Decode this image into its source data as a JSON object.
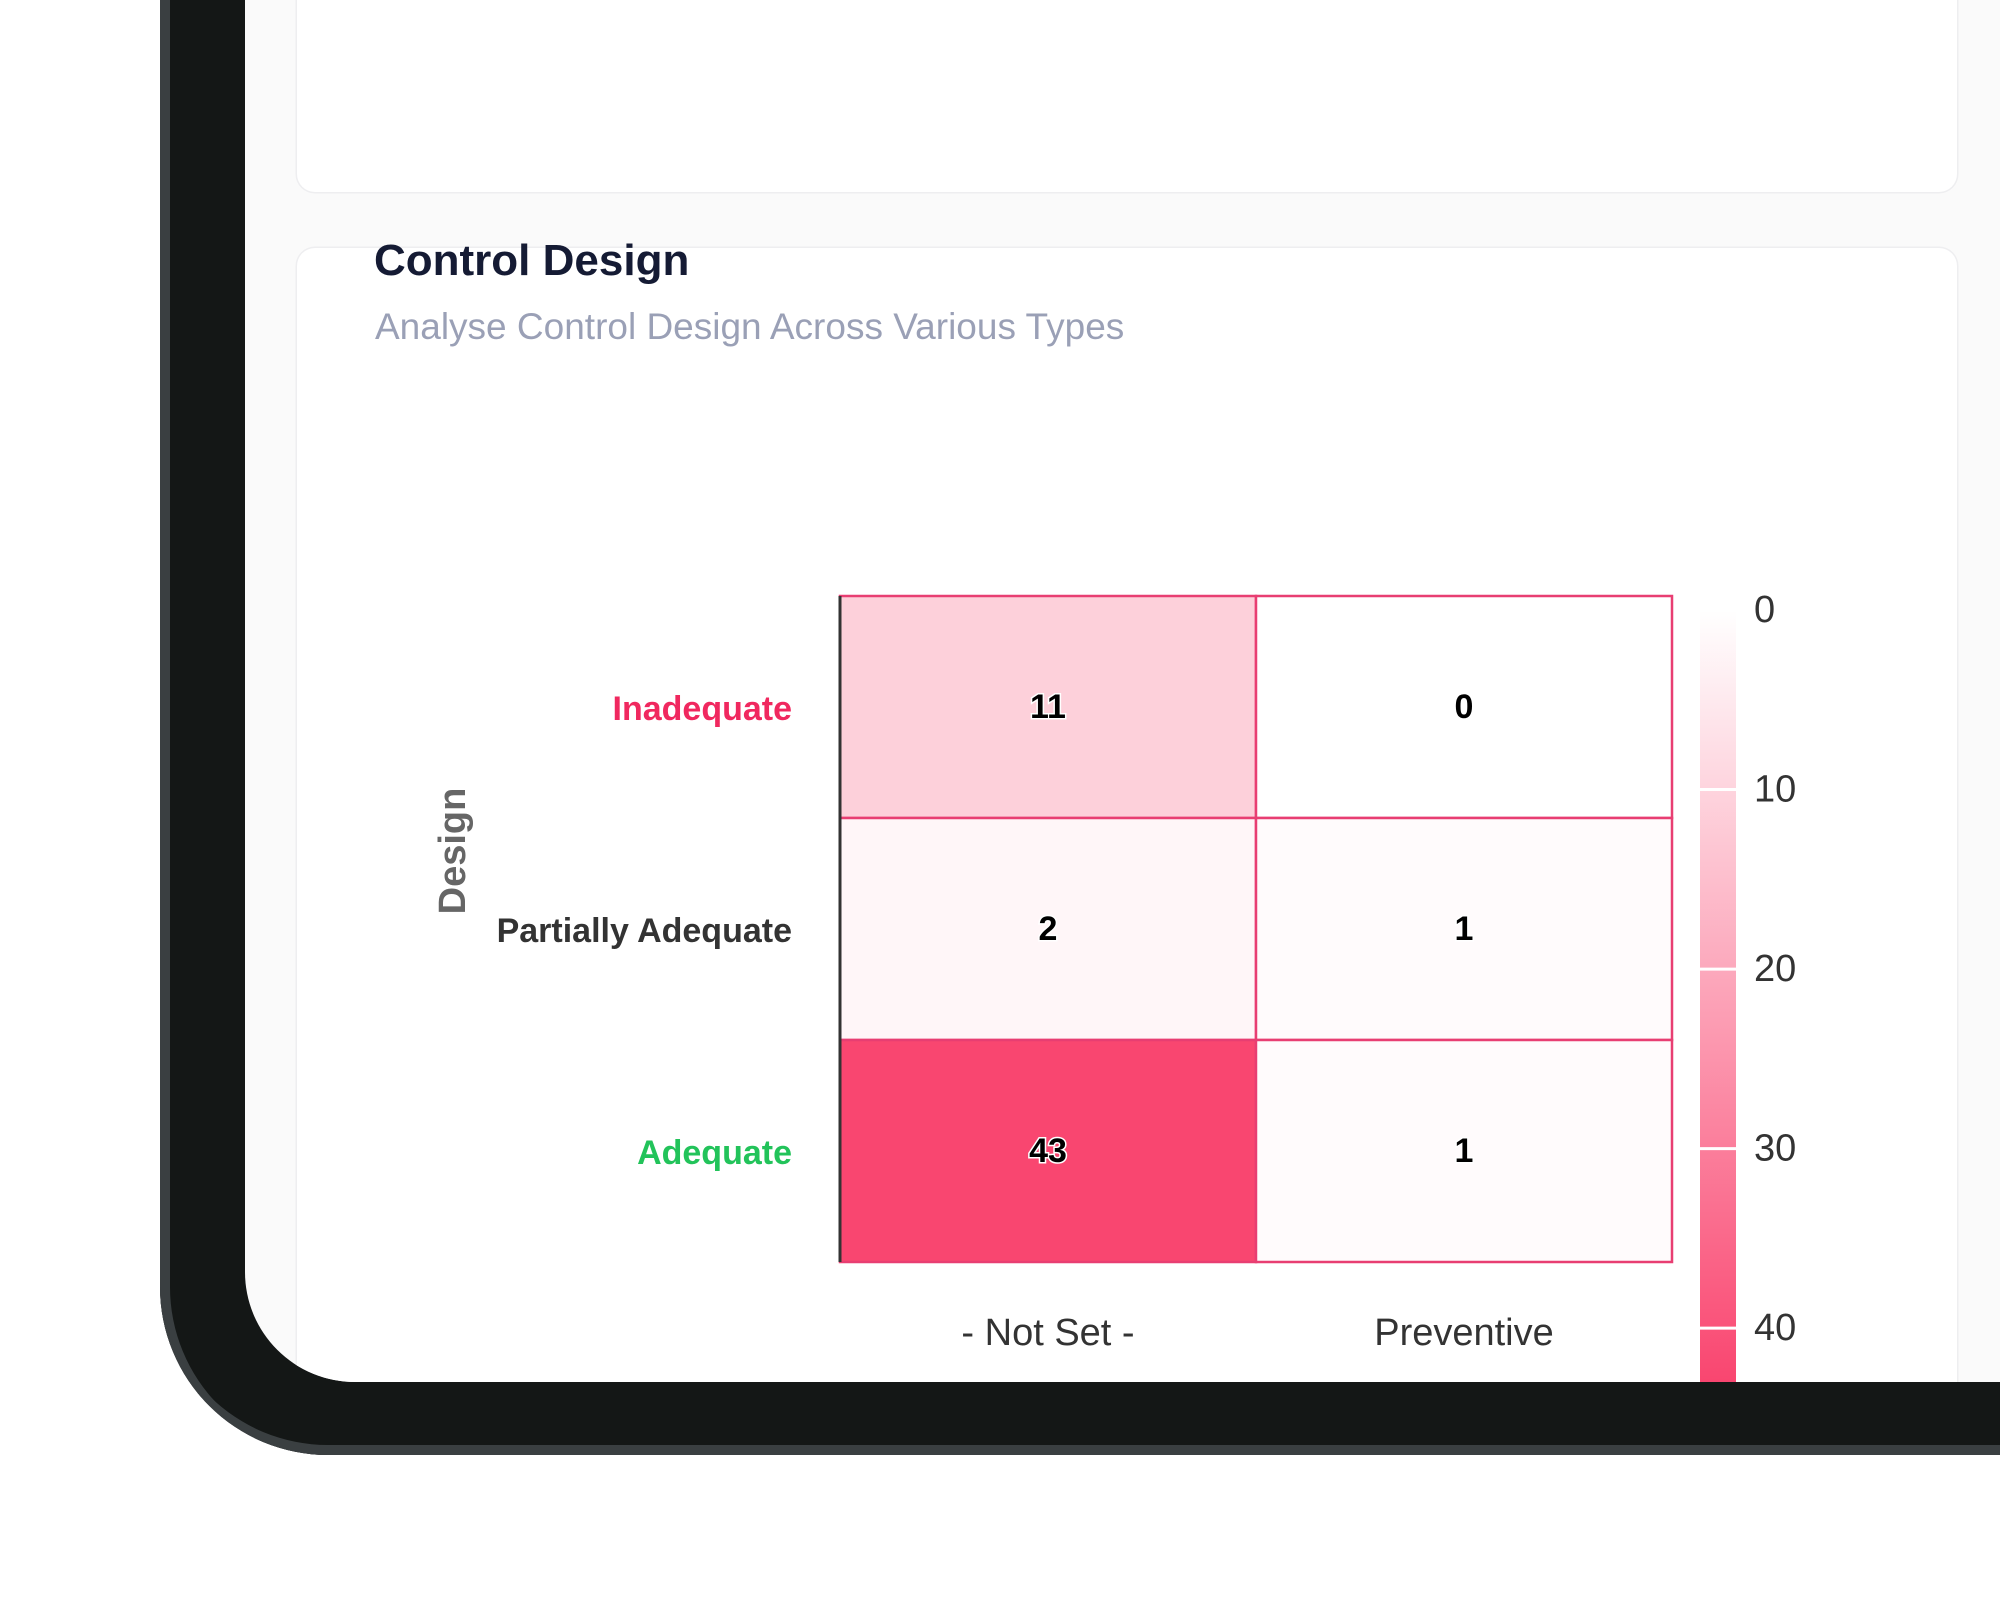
{
  "card": {
    "title": "Control Design",
    "subtitle": "Analyse Control Design Across Various Types"
  },
  "chart_data": {
    "type": "heatmap",
    "ylabel": "Design",
    "xlabel": "",
    "x_categories": [
      "- Not Set -",
      "Preventive"
    ],
    "y_categories": [
      "Inadequate",
      "Partially Adequate",
      "Adequate"
    ],
    "y_category_colors": [
      "#f0285f",
      "#333333",
      "#22c35a"
    ],
    "values": [
      [
        11,
        0
      ],
      [
        2,
        1
      ],
      [
        43,
        1
      ]
    ],
    "colorscale": {
      "min": 0,
      "max": 43,
      "ticks": [
        0,
        10,
        20,
        30,
        40
      ],
      "low_color": "#ffffff",
      "high_color": "#f94670"
    },
    "cell_border_color": "#e83e72"
  }
}
